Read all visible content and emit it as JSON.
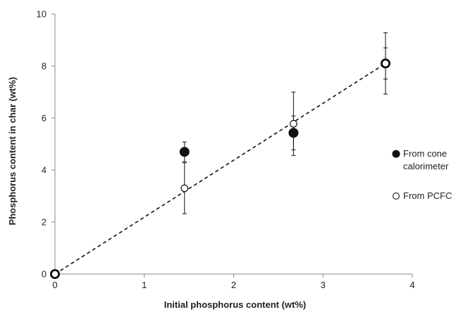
{
  "chart_data": {
    "type": "scatter",
    "title": "",
    "xlabel": "Initial phosphorus content (wt%)",
    "ylabel": "Phosphorus content in char (wt%)",
    "xlim": [
      0,
      4
    ],
    "ylim": [
      0,
      10
    ],
    "x_ticks": [
      "0",
      "1",
      "2",
      "3",
      "4"
    ],
    "y_ticks": [
      "0",
      "2",
      "4",
      "6",
      "8",
      "10"
    ],
    "grid": false,
    "legend_position": "right",
    "series": [
      {
        "name": "From cone calorimeter",
        "marker": "filled-circle",
        "color": "#111111",
        "points": [
          {
            "x": 0,
            "y": 0,
            "err": 0
          },
          {
            "x": 1.45,
            "y": 4.7,
            "err": 0.38
          },
          {
            "x": 2.67,
            "y": 5.43,
            "err": 0.65
          },
          {
            "x": 3.7,
            "y": 8.1,
            "err": 0.6
          }
        ]
      },
      {
        "name": "From PCFC",
        "marker": "open-circle",
        "color": "#111111",
        "points": [
          {
            "x": 0,
            "y": 0,
            "err": 0
          },
          {
            "x": 1.45,
            "y": 3.3,
            "err": 0.98
          },
          {
            "x": 2.67,
            "y": 5.78,
            "err": 1.22
          },
          {
            "x": 3.7,
            "y": 8.1,
            "err": 1.18
          }
        ]
      }
    ],
    "trendline": {
      "style": "dashed",
      "from": [
        0,
        0
      ],
      "to": [
        3.7,
        8.1
      ]
    },
    "legend": {
      "entries": [
        {
          "lines": [
            "From cone",
            "calorimeter"
          ],
          "marker": "filled-circle"
        },
        {
          "lines": [
            "From PCFC"
          ],
          "marker": "open-circle"
        }
      ]
    }
  }
}
